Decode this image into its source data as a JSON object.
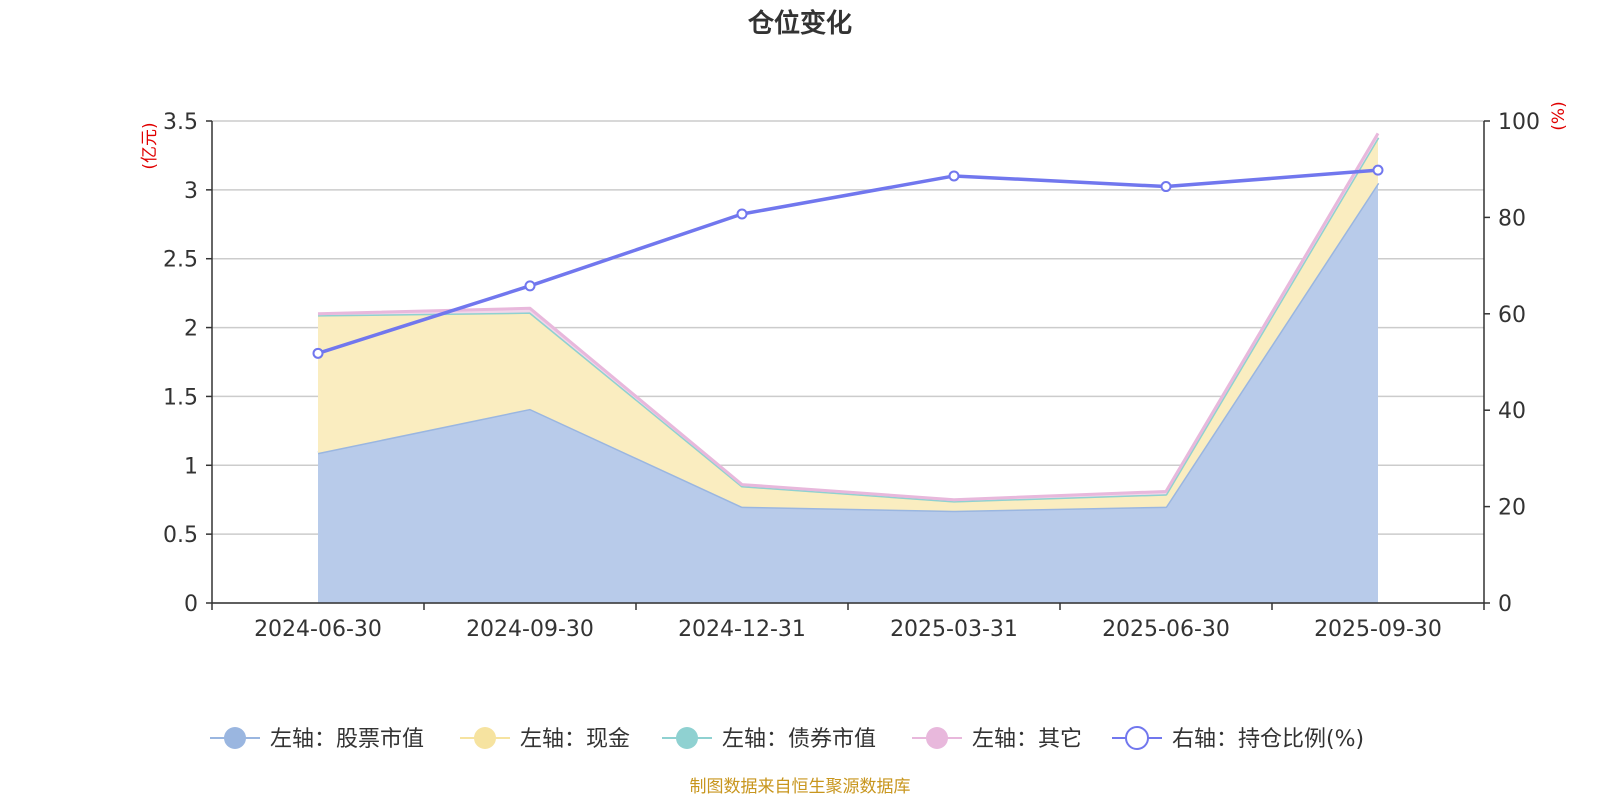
{
  "chart_data": {
    "type": "area",
    "title": "仓位变化",
    "source": "制图数据来自恒生聚源数据库",
    "x": [
      "2024-06-30",
      "2024-09-30",
      "2024-12-31",
      "2025-03-31",
      "2025-06-30",
      "2025-09-30"
    ],
    "left_axis": {
      "unit": "(亿元)",
      "ylim": [
        0,
        3.5
      ],
      "ticks": [
        "0",
        "0.5",
        "1",
        "1.5",
        "2",
        "2.5",
        "3",
        "3.5"
      ]
    },
    "right_axis": {
      "unit": "(%)",
      "ylim": [
        0,
        100
      ],
      "ticks": [
        "0",
        "20",
        "40",
        "60",
        "80",
        "100"
      ]
    },
    "grid": true,
    "legend_position": "bottom",
    "series": [
      {
        "name": "左轴：股票市值",
        "axis": "left",
        "stack": true,
        "color": "#9ab6e0",
        "fill": "#b8cbea",
        "values": [
          1.09,
          1.41,
          0.7,
          0.67,
          0.7,
          3.05
        ]
      },
      {
        "name": "左轴：现金",
        "axis": "left",
        "stack": true,
        "color": "#f6e3a0",
        "fill": "#faedc0",
        "values": [
          1.0,
          0.7,
          0.15,
          0.07,
          0.09,
          0.33
        ]
      },
      {
        "name": "左轴：债券市值",
        "axis": "left",
        "stack": true,
        "color": "#8fd1d1",
        "fill": "#b4e0e0",
        "values": [
          0,
          0,
          0,
          0,
          0,
          0
        ]
      },
      {
        "name": "左轴：其它",
        "axis": "left",
        "stack": true,
        "color": "#e8b8dc",
        "fill": "#f2d6ea",
        "values": [
          0.01,
          0.03,
          0.01,
          0.01,
          0.02,
          0.03
        ]
      },
      {
        "name": "右轴：持仓比例(%)",
        "axis": "right",
        "stack": false,
        "color": "#7177ee",
        "values": [
          51.8,
          65.8,
          80.7,
          88.6,
          86.4,
          89.8
        ]
      }
    ]
  }
}
